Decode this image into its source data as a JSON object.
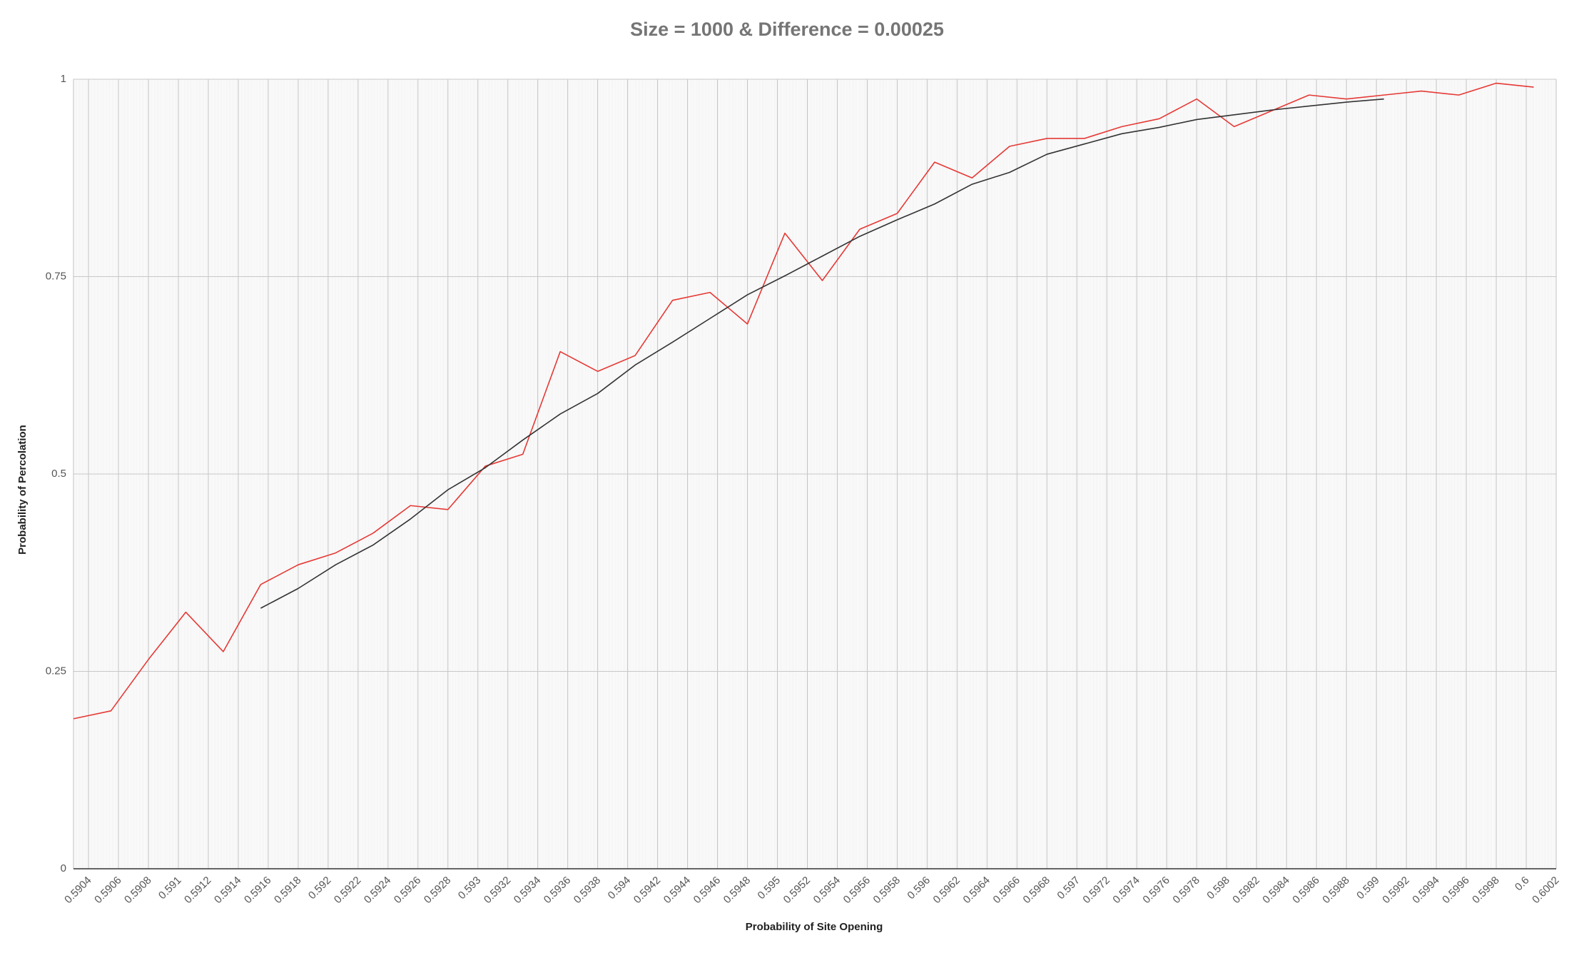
{
  "chart_data": {
    "type": "line",
    "title": "Size = 1000 & Difference  = 0.00025",
    "xlabel": "Probability of Site Opening",
    "ylabel": "Probability of Percolation",
    "xlim": [
      0.5903,
      0.6002
    ],
    "ylim": [
      0,
      1
    ],
    "grid": true,
    "legend": "none",
    "x_ticks": [
      {
        "v": 0.5904,
        "label": "0.5904"
      },
      {
        "v": 0.5906,
        "label": "0.5906"
      },
      {
        "v": 0.5908,
        "label": "0.5908"
      },
      {
        "v": 0.591,
        "label": "0.591"
      },
      {
        "v": 0.5912,
        "label": "0.5912"
      },
      {
        "v": 0.5914,
        "label": "0.5914"
      },
      {
        "v": 0.5916,
        "label": "0.5916"
      },
      {
        "v": 0.5918,
        "label": "0.5918"
      },
      {
        "v": 0.592,
        "label": "0.592"
      },
      {
        "v": 0.5922,
        "label": "0.5922"
      },
      {
        "v": 0.5924,
        "label": "0.5924"
      },
      {
        "v": 0.5926,
        "label": "0.5926"
      },
      {
        "v": 0.5928,
        "label": "0.5928"
      },
      {
        "v": 0.593,
        "label": "0.593"
      },
      {
        "v": 0.5932,
        "label": "0.5932"
      },
      {
        "v": 0.5934,
        "label": "0.5934"
      },
      {
        "v": 0.5936,
        "label": "0.5936"
      },
      {
        "v": 0.5938,
        "label": "0.5938"
      },
      {
        "v": 0.594,
        "label": "0.594"
      },
      {
        "v": 0.5942,
        "label": "0.5942"
      },
      {
        "v": 0.5944,
        "label": "0.5944"
      },
      {
        "v": 0.5946,
        "label": "0.5946"
      },
      {
        "v": 0.5948,
        "label": "0.5948"
      },
      {
        "v": 0.595,
        "label": "0.595"
      },
      {
        "v": 0.5952,
        "label": "0.5952"
      },
      {
        "v": 0.5954,
        "label": "0.5954"
      },
      {
        "v": 0.5956,
        "label": "0.5956"
      },
      {
        "v": 0.5958,
        "label": "0.5958"
      },
      {
        "v": 0.596,
        "label": "0.596"
      },
      {
        "v": 0.5962,
        "label": "0.5962"
      },
      {
        "v": 0.5964,
        "label": "0.5964"
      },
      {
        "v": 0.5966,
        "label": "0.5966"
      },
      {
        "v": 0.5968,
        "label": "0.5968"
      },
      {
        "v": 0.597,
        "label": "0.597"
      },
      {
        "v": 0.5972,
        "label": "0.5972"
      },
      {
        "v": 0.5974,
        "label": "0.5974"
      },
      {
        "v": 0.5976,
        "label": "0.5976"
      },
      {
        "v": 0.5978,
        "label": "0.5978"
      },
      {
        "v": 0.598,
        "label": "0.598"
      },
      {
        "v": 0.5982,
        "label": "0.5982"
      },
      {
        "v": 0.5984,
        "label": "0.5984"
      },
      {
        "v": 0.5986,
        "label": "0.5986"
      },
      {
        "v": 0.5988,
        "label": "0.5988"
      },
      {
        "v": 0.599,
        "label": "0.599"
      },
      {
        "v": 0.5992,
        "label": "0.5992"
      },
      {
        "v": 0.5994,
        "label": "0.5994"
      },
      {
        "v": 0.5996,
        "label": "0.5996"
      },
      {
        "v": 0.5998,
        "label": "0.5998"
      },
      {
        "v": 0.6,
        "label": "0.6"
      },
      {
        "v": 0.6002,
        "label": "0.6002"
      }
    ],
    "y_ticks": [
      {
        "v": 0,
        "label": "0"
      },
      {
        "v": 0.25,
        "label": "0.25"
      },
      {
        "v": 0.5,
        "label": "0.5"
      },
      {
        "v": 0.75,
        "label": "0.75"
      },
      {
        "v": 1,
        "label": "1"
      }
    ],
    "series": [
      {
        "color": "#e53935",
        "x": [
          0.5903,
          0.59055,
          0.5908,
          0.59105,
          0.5913,
          0.59155,
          0.5918,
          0.59205,
          0.5923,
          0.59255,
          0.5928,
          0.59305,
          0.5933,
          0.59355,
          0.5938,
          0.59405,
          0.5943,
          0.59455,
          0.5948,
          0.59505,
          0.5953,
          0.59555,
          0.5958,
          0.59605,
          0.5963,
          0.59655,
          0.5968,
          0.59705,
          0.5973,
          0.59755,
          0.5978,
          0.59805,
          0.5983,
          0.59855,
          0.5988,
          0.59905,
          0.5993,
          0.59955,
          0.5998,
          0.60005
        ],
        "values": [
          0.19,
          0.2,
          0.265,
          0.325,
          0.275,
          0.36,
          0.385,
          0.4,
          0.425,
          0.46,
          0.455,
          0.51,
          0.525,
          0.655,
          0.63,
          0.65,
          0.72,
          0.73,
          0.69,
          0.805,
          0.745,
          0.81,
          0.83,
          0.895,
          0.875,
          0.915,
          0.925,
          0.925,
          0.94,
          0.95,
          0.975,
          0.94,
          0.96,
          0.98,
          0.975,
          0.98,
          0.985,
          0.98,
          0.995,
          0.99
        ]
      },
      {
        "color": "#333333",
        "x": [
          0.59155,
          0.5918,
          0.59205,
          0.5923,
          0.59255,
          0.5928,
          0.59305,
          0.5933,
          0.59355,
          0.5938,
          0.59405,
          0.5943,
          0.59455,
          0.5948,
          0.59505,
          0.5953,
          0.59555,
          0.5958,
          0.59605,
          0.5963,
          0.59655,
          0.5968,
          0.59705,
          0.5973,
          0.59755,
          0.5978,
          0.59805,
          0.5983,
          0.59855,
          0.5988,
          0.59905
        ],
        "values": [
          0.33,
          0.355,
          0.385,
          0.41,
          0.443,
          0.48,
          0.508,
          0.543,
          0.576,
          0.602,
          0.638,
          0.667,
          0.697,
          0.727,
          0.751,
          0.776,
          0.801,
          0.822,
          0.842,
          0.867,
          0.882,
          0.905,
          0.918,
          0.931,
          0.939,
          0.949,
          0.955,
          0.961,
          0.966,
          0.971,
          0.975
        ]
      }
    ]
  }
}
